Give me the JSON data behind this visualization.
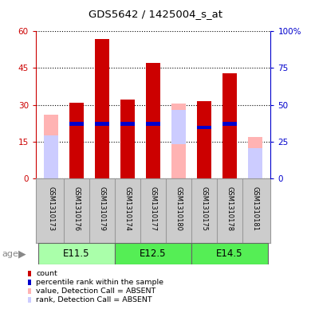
{
  "title": "GDS5642 / 1425004_s_at",
  "samples": [
    "GSM1310173",
    "GSM1310176",
    "GSM1310179",
    "GSM1310174",
    "GSM1310177",
    "GSM1310180",
    "GSM1310175",
    "GSM1310178",
    "GSM1310181"
  ],
  "red_bar_heights": [
    0.3,
    31.0,
    57.0,
    32.0,
    47.0,
    0.3,
    31.5,
    43.0,
    0.3
  ],
  "pink_bar_heights": [
    26.0,
    0,
    0,
    0,
    0,
    30.5,
    0,
    0,
    17.0
  ],
  "blue_bar_heights": [
    0,
    1.5,
    1.5,
    1.5,
    1.5,
    0,
    1.5,
    1.5,
    0
  ],
  "blue_bar_bottoms": [
    0,
    21.5,
    21.5,
    21.5,
    21.5,
    0,
    20.0,
    21.5,
    0
  ],
  "lightblue_bar_heights": [
    17.5,
    0,
    0,
    0,
    0,
    14.0,
    0,
    0,
    12.5
  ],
  "lightblue_bar_bottoms": [
    0,
    0,
    0,
    0,
    0,
    14.0,
    0,
    0,
    0
  ],
  "age_groups": [
    {
      "label": "E11.5",
      "start": 0,
      "end": 3,
      "color": "#aaffaa"
    },
    {
      "label": "E12.5",
      "start": 3,
      "end": 6,
      "color": "#55ee55"
    },
    {
      "label": "E14.5",
      "start": 6,
      "end": 9,
      "color": "#55ee55"
    }
  ],
  "ylim": [
    0,
    60
  ],
  "yticks": [
    0,
    15,
    30,
    45,
    60
  ],
  "ytick_labels_left": [
    "0",
    "15",
    "30",
    "45",
    "60"
  ],
  "ytick_labels_right": [
    "0",
    "25",
    "50",
    "75",
    "100%"
  ],
  "left_axis_color": "#cc0000",
  "right_axis_color": "#0000cc",
  "bar_color_red": "#cc0000",
  "bar_color_pink": "#ffb3b3",
  "bar_color_blue": "#0000cc",
  "bar_color_lightblue": "#ccccff",
  "grid_color": "#000000",
  "bg_color": "#ffffff",
  "sample_label_bg": "#cccccc",
  "legend_items": [
    {
      "color": "#cc0000",
      "label": "count"
    },
    {
      "color": "#0000cc",
      "label": "percentile rank within the sample"
    },
    {
      "color": "#ffb3b3",
      "label": "value, Detection Call = ABSENT"
    },
    {
      "color": "#ccccff",
      "label": "rank, Detection Call = ABSENT"
    }
  ]
}
